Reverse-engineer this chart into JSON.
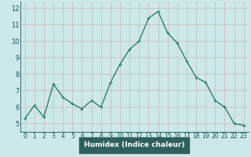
{
  "x": [
    0,
    1,
    2,
    3,
    4,
    5,
    6,
    7,
    8,
    9,
    10,
    11,
    12,
    13,
    14,
    15,
    16,
    17,
    18,
    19,
    20,
    21,
    22,
    23
  ],
  "y": [
    5.3,
    6.1,
    5.4,
    7.4,
    6.6,
    6.2,
    5.9,
    6.4,
    6.0,
    7.5,
    8.6,
    9.5,
    10.0,
    11.4,
    11.8,
    10.5,
    9.9,
    8.8,
    7.8,
    7.5,
    6.4,
    6.0,
    5.0,
    4.9
  ],
  "line_color": "#2e7d6e",
  "bg_color": "#cde8e8",
  "plot_bg_color": "#cde8e8",
  "xlabel_bg_color": "#2e6060",
  "grid_color": "#c8b8b8",
  "xlabel": "Humidex (Indice chaleur)",
  "xlabel_color": "#ffffff",
  "xlabel_fontsize": 6.5,
  "tick_color": "#1a5555",
  "tick_fontsize": 5.5,
  "ytick_fontsize": 6.0,
  "ylim": [
    4.5,
    12.4
  ],
  "xlim": [
    -0.5,
    23.5
  ],
  "yticks": [
    5,
    6,
    7,
    8,
    9,
    10,
    11,
    12
  ],
  "xticks": [
    0,
    1,
    2,
    3,
    4,
    5,
    6,
    7,
    8,
    9,
    10,
    11,
    12,
    13,
    14,
    15,
    16,
    17,
    18,
    19,
    20,
    21,
    22,
    23
  ],
  "marker": "+",
  "marker_size": 3.5,
  "linewidth": 1.0
}
